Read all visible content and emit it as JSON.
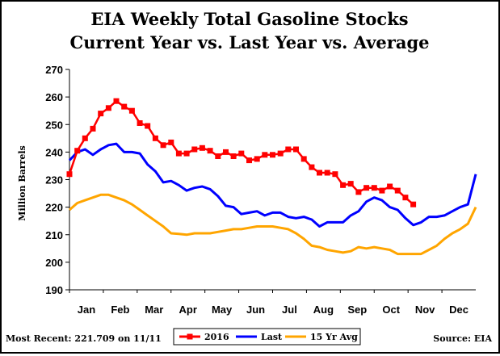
{
  "chart_data": {
    "type": "line",
    "title": "EIA Weekly Total Gasoline Stocks",
    "subtitle": "Current Year vs. Last Year vs. Average",
    "ylabel": "Million Barrels",
    "xlabel": "",
    "ylim": [
      190,
      270
    ],
    "yticks": [
      190,
      200,
      210,
      220,
      230,
      240,
      250,
      260,
      270
    ],
    "xlim": [
      0,
      52
    ],
    "months": [
      "Jan",
      "Feb",
      "Mar",
      "Apr",
      "May",
      "Jun",
      "Jul",
      "Aug",
      "Sep",
      "Oct",
      "Nov",
      "Dec"
    ],
    "grid": false,
    "legend_position": "bottom",
    "colors": {
      "2016": "#ff0000",
      "Last": "#0000ff",
      "15 Yr Avg": "#ffa500"
    },
    "series": [
      {
        "name": "2016",
        "x": [
          0,
          1,
          2,
          3,
          4,
          5,
          6,
          7,
          8,
          9,
          10,
          11,
          12,
          13,
          14,
          15,
          16,
          17,
          18,
          19,
          20,
          21,
          22,
          23,
          24,
          25,
          26,
          27,
          28,
          29,
          30,
          31,
          32,
          33,
          34,
          35,
          36,
          37,
          38,
          39,
          40,
          41,
          42,
          43,
          44
        ],
        "values": [
          232.0,
          240.5,
          245.0,
          248.5,
          254.0,
          256.0,
          258.5,
          256.5,
          255.0,
          250.5,
          249.5,
          245.0,
          242.5,
          243.5,
          239.5,
          239.5,
          241.0,
          241.5,
          240.5,
          238.5,
          240.0,
          238.5,
          239.5,
          237.0,
          237.5,
          239.0,
          239.0,
          239.5,
          241.0,
          241.0,
          237.5,
          234.5,
          232.5,
          232.5,
          232.0,
          228.0,
          228.5,
          225.5,
          227.0,
          227.0,
          226.0,
          227.5,
          226.0,
          223.5,
          221.0
        ]
      },
      {
        "name": "Last",
        "x": [
          0,
          1,
          2,
          3,
          4,
          5,
          6,
          7,
          8,
          9,
          10,
          11,
          12,
          13,
          14,
          15,
          16,
          17,
          18,
          19,
          20,
          21,
          22,
          23,
          24,
          25,
          26,
          27,
          28,
          29,
          30,
          31,
          32,
          33,
          34,
          35,
          36,
          37,
          38,
          39,
          40,
          41,
          42,
          43,
          44,
          45,
          46,
          47,
          48,
          49,
          50,
          51,
          52
        ],
        "values": [
          237.0,
          240.0,
          241.0,
          239.0,
          241.0,
          242.5,
          243.0,
          240.0,
          240.0,
          239.5,
          235.5,
          233.0,
          229.0,
          229.5,
          228.0,
          226.0,
          227.0,
          227.5,
          226.5,
          224.0,
          220.5,
          220.0,
          217.5,
          218.0,
          218.5,
          217.0,
          218.0,
          218.0,
          216.5,
          216.0,
          216.5,
          215.5,
          213.0,
          214.5,
          214.5,
          214.5,
          217.0,
          218.5,
          222.0,
          223.5,
          222.5,
          220.0,
          219.0,
          216.0,
          213.5,
          214.5,
          216.5,
          216.5,
          217.0,
          218.5,
          220.0,
          221.0,
          232.0
        ]
      },
      {
        "name": "15 Yr Avg",
        "x": [
          0,
          1,
          2,
          3,
          4,
          5,
          6,
          7,
          8,
          9,
          10,
          11,
          12,
          13,
          14,
          15,
          16,
          17,
          18,
          19,
          20,
          21,
          22,
          23,
          24,
          25,
          26,
          27,
          28,
          29,
          30,
          31,
          32,
          33,
          34,
          35,
          36,
          37,
          38,
          39,
          40,
          41,
          42,
          43,
          44,
          45,
          46,
          47,
          48,
          49,
          50,
          51,
          52
        ],
        "values": [
          219.0,
          221.5,
          222.5,
          223.5,
          224.5,
          224.5,
          223.5,
          222.5,
          221.0,
          219.0,
          217.0,
          215.0,
          213.0,
          210.5,
          210.3,
          210.0,
          210.5,
          210.5,
          210.5,
          211.0,
          211.5,
          212.0,
          212.0,
          212.5,
          213.0,
          213.0,
          213.0,
          212.5,
          212.0,
          210.5,
          208.5,
          206.0,
          205.5,
          204.5,
          204.0,
          203.5,
          204.0,
          205.5,
          205.0,
          205.5,
          205.0,
          204.5,
          203.0,
          203.0,
          203.0,
          203.0,
          204.5,
          206.0,
          208.5,
          210.5,
          212.0,
          214.0,
          220.0
        ]
      }
    ],
    "footer_left": "Most Recent: 221.709 on 11/11",
    "footer_right": "Source: EIA"
  }
}
